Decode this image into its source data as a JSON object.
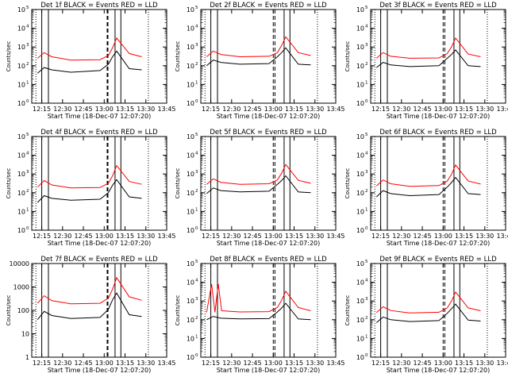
{
  "figure": {
    "ylabel": "Counts/sec",
    "xlabel": "Start Time (18-Dec-07 12:07:20)",
    "xticks": [
      "12:15",
      "12:30",
      "12:45",
      "13:00",
      "13:15",
      "13:30",
      "13:45"
    ],
    "colors": {
      "events": "#000000",
      "lld": "#ff0000",
      "axes": "#000000"
    },
    "markers": {
      "dotted": [
        12.18,
        13.53
      ],
      "solid": [
        12.25,
        12.33,
        13.13,
        13.2
      ],
      "dashed_single": [
        13.04
      ],
      "dashed_double": [
        13.0,
        13.02
      ]
    }
  },
  "chart_data": [
    {
      "type": "line",
      "title": "Det 1f BLACK = Events RED = LLD",
      "xlabel": "Start Time (18-Dec-07 12:07:20)",
      "ylabel": "Counts/sec",
      "yscale": "log",
      "ylim": [
        1,
        100000
      ],
      "ytick_style": "exp",
      "dash": "single",
      "xlim": [
        12.13,
        13.75
      ],
      "series": [
        {
          "color": "black",
          "values": [
            [
              12.2,
              40
            ],
            [
              12.28,
              80
            ],
            [
              12.37,
              60
            ],
            [
              12.6,
              45
            ],
            [
              12.95,
              55
            ],
            [
              13.05,
              120
            ],
            [
              13.1,
              300
            ],
            [
              13.15,
              600
            ],
            [
              13.3,
              70
            ],
            [
              13.45,
              60
            ]
          ]
        },
        {
          "color": "red",
          "values": [
            [
              12.2,
              250
            ],
            [
              12.28,
              500
            ],
            [
              12.37,
              300
            ],
            [
              12.6,
              200
            ],
            [
              12.95,
              210
            ],
            [
              13.05,
              350
            ],
            [
              13.1,
              900
            ],
            [
              13.15,
              3000
            ],
            [
              13.3,
              450
            ],
            [
              13.45,
              300
            ]
          ]
        }
      ]
    },
    {
      "type": "line",
      "title": "Det 2f BLACK = Events RED = LLD",
      "xlabel": "Start Time (18-Dec-07 12:07:20)",
      "ylabel": "Counts/sec",
      "yscale": "log",
      "ylim": [
        1,
        100000
      ],
      "ytick_style": "exp",
      "dash": "double",
      "xlim": [
        12.13,
        13.75
      ],
      "series": [
        {
          "color": "black",
          "values": [
            [
              12.2,
              100
            ],
            [
              12.28,
              200
            ],
            [
              12.37,
              150
            ],
            [
              12.6,
              120
            ],
            [
              12.95,
              130
            ],
            [
              13.05,
              300
            ],
            [
              13.1,
              500
            ],
            [
              13.15,
              900
            ],
            [
              13.3,
              120
            ],
            [
              13.45,
              110
            ]
          ]
        },
        {
          "color": "red",
          "values": [
            [
              12.2,
              300
            ],
            [
              12.28,
              600
            ],
            [
              12.37,
              400
            ],
            [
              12.6,
              300
            ],
            [
              12.95,
              320
            ],
            [
              13.05,
              500
            ],
            [
              13.1,
              1200
            ],
            [
              13.15,
              3500
            ],
            [
              13.3,
              500
            ],
            [
              13.45,
              350
            ]
          ]
        }
      ]
    },
    {
      "type": "line",
      "title": "Det 3f BLACK = Events RED = LLD",
      "xlabel": "Start Time (18-Dec-07 12:07:20)",
      "ylabel": "Counts/sec",
      "yscale": "log",
      "ylim": [
        1,
        100000
      ],
      "ytick_style": "exp",
      "dash": "double",
      "xlim": [
        12.13,
        13.75
      ],
      "series": [
        {
          "color": "black",
          "values": [
            [
              12.2,
              80
            ],
            [
              12.28,
              150
            ],
            [
              12.37,
              110
            ],
            [
              12.6,
              90
            ],
            [
              12.95,
              100
            ],
            [
              13.05,
              250
            ],
            [
              13.1,
              400
            ],
            [
              13.15,
              700
            ],
            [
              13.3,
              100
            ],
            [
              13.45,
              90
            ]
          ]
        },
        {
          "color": "red",
          "values": [
            [
              12.2,
              250
            ],
            [
              12.28,
              500
            ],
            [
              12.37,
              320
            ],
            [
              12.6,
              250
            ],
            [
              12.95,
              260
            ],
            [
              13.05,
              450
            ],
            [
              13.1,
              1000
            ],
            [
              13.15,
              3000
            ],
            [
              13.3,
              420
            ],
            [
              13.45,
              300
            ]
          ]
        }
      ]
    },
    {
      "type": "line",
      "title": "Det 4f BLACK = Events RED = LLD",
      "xlabel": "Start Time (18-Dec-07 12:07:20)",
      "ylabel": "Counts/sec",
      "yscale": "log",
      "ylim": [
        1,
        100000
      ],
      "ytick_style": "exp",
      "dash": "single",
      "xlim": [
        12.13,
        13.75
      ],
      "series": [
        {
          "color": "black",
          "values": [
            [
              12.2,
              30
            ],
            [
              12.28,
              70
            ],
            [
              12.37,
              50
            ],
            [
              12.6,
              40
            ],
            [
              12.95,
              45
            ],
            [
              13.05,
              100
            ],
            [
              13.1,
              250
            ],
            [
              13.15,
              500
            ],
            [
              13.3,
              60
            ],
            [
              13.45,
              50
            ]
          ]
        },
        {
          "color": "red",
          "values": [
            [
              12.2,
              200
            ],
            [
              12.28,
              450
            ],
            [
              12.37,
              260
            ],
            [
              12.6,
              180
            ],
            [
              12.95,
              190
            ],
            [
              13.05,
              320
            ],
            [
              13.1,
              800
            ],
            [
              13.15,
              2800
            ],
            [
              13.3,
              400
            ],
            [
              13.45,
              280
            ]
          ]
        }
      ]
    },
    {
      "type": "line",
      "title": "Det 5f BLACK = Events RED = LLD",
      "xlabel": "Start Time (18-Dec-07 12:07:20)",
      "ylabel": "Counts/sec",
      "yscale": "log",
      "ylim": [
        1,
        100000
      ],
      "ytick_style": "exp",
      "dash": "double",
      "xlim": [
        12.13,
        13.75
      ],
      "series": [
        {
          "color": "black",
          "values": [
            [
              12.2,
              90
            ],
            [
              12.28,
              180
            ],
            [
              12.37,
              130
            ],
            [
              12.6,
              110
            ],
            [
              12.95,
              120
            ],
            [
              13.05,
              280
            ],
            [
              13.1,
              450
            ],
            [
              13.15,
              800
            ],
            [
              13.3,
              110
            ],
            [
              13.45,
              100
            ]
          ]
        },
        {
          "color": "red",
          "values": [
            [
              12.2,
              280
            ],
            [
              12.28,
              550
            ],
            [
              12.37,
              360
            ],
            [
              12.6,
              280
            ],
            [
              12.95,
              300
            ],
            [
              13.05,
              480
            ],
            [
              13.1,
              1100
            ],
            [
              13.15,
              3200
            ],
            [
              13.3,
              460
            ],
            [
              13.45,
              320
            ]
          ]
        }
      ]
    },
    {
      "type": "line",
      "title": "Det 6f BLACK = Events RED = LLD",
      "xlabel": "Start Time (18-Dec-07 12:07:20)",
      "ylabel": "Counts/sec",
      "yscale": "log",
      "ylim": [
        1,
        100000
      ],
      "ytick_style": "exp",
      "dash": "double",
      "xlim": [
        12.13,
        13.75
      ],
      "series": [
        {
          "color": "black",
          "values": [
            [
              12.2,
              60
            ],
            [
              12.28,
              130
            ],
            [
              12.37,
              90
            ],
            [
              12.6,
              70
            ],
            [
              12.95,
              80
            ],
            [
              13.05,
              200
            ],
            [
              13.1,
              350
            ],
            [
              13.15,
              650
            ],
            [
              13.3,
              90
            ],
            [
              13.45,
              80
            ]
          ]
        },
        {
          "color": "red",
          "values": [
            [
              12.2,
              230
            ],
            [
              12.28,
              480
            ],
            [
              12.37,
              300
            ],
            [
              12.6,
              220
            ],
            [
              12.95,
              240
            ],
            [
              13.05,
              420
            ],
            [
              13.1,
              950
            ],
            [
              13.15,
              3000
            ],
            [
              13.3,
              420
            ],
            [
              13.45,
              290
            ]
          ]
        }
      ]
    },
    {
      "type": "line",
      "title": "Det 7f BLACK = Events RED = LLD",
      "xlabel": "Start Time (18-Dec-07 12:07:20)",
      "ylabel": "Counts/sec",
      "yscale": "log",
      "ylim": [
        1,
        10000
      ],
      "ytick_style": "num",
      "dash": "single",
      "xlim": [
        12.13,
        13.75
      ],
      "series": [
        {
          "color": "black",
          "values": [
            [
              12.2,
              40
            ],
            [
              12.28,
              90
            ],
            [
              12.37,
              60
            ],
            [
              12.6,
              45
            ],
            [
              12.95,
              50
            ],
            [
              13.05,
              110
            ],
            [
              13.1,
              280
            ],
            [
              13.15,
              550
            ],
            [
              13.3,
              65
            ],
            [
              13.45,
              55
            ]
          ]
        },
        {
          "color": "red",
          "values": [
            [
              12.2,
              200
            ],
            [
              12.28,
              420
            ],
            [
              12.37,
              260
            ],
            [
              12.6,
              190
            ],
            [
              12.95,
              200
            ],
            [
              13.05,
              330
            ],
            [
              13.1,
              800
            ],
            [
              13.15,
              2500
            ],
            [
              13.3,
              380
            ],
            [
              13.45,
              270
            ]
          ]
        }
      ]
    },
    {
      "type": "line",
      "title": "Det 8f BLACK = Events RED = LLD",
      "xlabel": "Start Time (18-Dec-07 12:07:20)",
      "ylabel": "Counts/sec",
      "yscale": "log",
      "ylim": [
        1,
        100000
      ],
      "ytick_style": "exp",
      "dash": "double",
      "xlim": [
        12.13,
        13.75
      ],
      "series": [
        {
          "color": "black",
          "values": [
            [
              12.2,
              100
            ],
            [
              12.28,
              150
            ],
            [
              12.37,
              120
            ],
            [
              12.6,
              110
            ],
            [
              12.95,
              115
            ],
            [
              13.05,
              260
            ],
            [
              13.1,
              420
            ],
            [
              13.15,
              750
            ],
            [
              13.3,
              110
            ],
            [
              13.45,
              100
            ]
          ]
        },
        {
          "color": "red",
          "values": [
            [
              12.2,
              250
            ],
            [
              12.26,
              8000
            ],
            [
              12.3,
              250
            ],
            [
              12.34,
              8000
            ],
            [
              12.38,
              300
            ],
            [
              12.6,
              260
            ],
            [
              12.95,
              270
            ],
            [
              13.05,
              460
            ],
            [
              13.1,
              1100
            ],
            [
              13.15,
              3300
            ],
            [
              13.3,
              450
            ],
            [
              13.45,
              300
            ]
          ]
        }
      ]
    },
    {
      "type": "line",
      "title": "Det 9f BLACK = Events RED = LLD",
      "xlabel": "Start Time (18-Dec-07 12:07:20)",
      "ylabel": "Counts/sec",
      "yscale": "log",
      "ylim": [
        1,
        100000
      ],
      "ytick_style": "exp",
      "dash": "double",
      "xlim": [
        12.13,
        13.75
      ],
      "series": [
        {
          "color": "black",
          "values": [
            [
              12.2,
              70
            ],
            [
              12.28,
              140
            ],
            [
              12.37,
              100
            ],
            [
              12.6,
              80
            ],
            [
              12.95,
              90
            ],
            [
              13.05,
              220
            ],
            [
              13.1,
              380
            ],
            [
              13.15,
              680
            ],
            [
              13.3,
              95
            ],
            [
              13.45,
              85
            ]
          ]
        },
        {
          "color": "red",
          "values": [
            [
              12.2,
              240
            ],
            [
              12.28,
              490
            ],
            [
              12.37,
              310
            ],
            [
              12.6,
              230
            ],
            [
              12.95,
              250
            ],
            [
              13.05,
              430
            ],
            [
              13.1,
              980
            ],
            [
              13.15,
              3000
            ],
            [
              13.3,
              430
            ],
            [
              13.45,
              300
            ]
          ]
        }
      ]
    }
  ]
}
